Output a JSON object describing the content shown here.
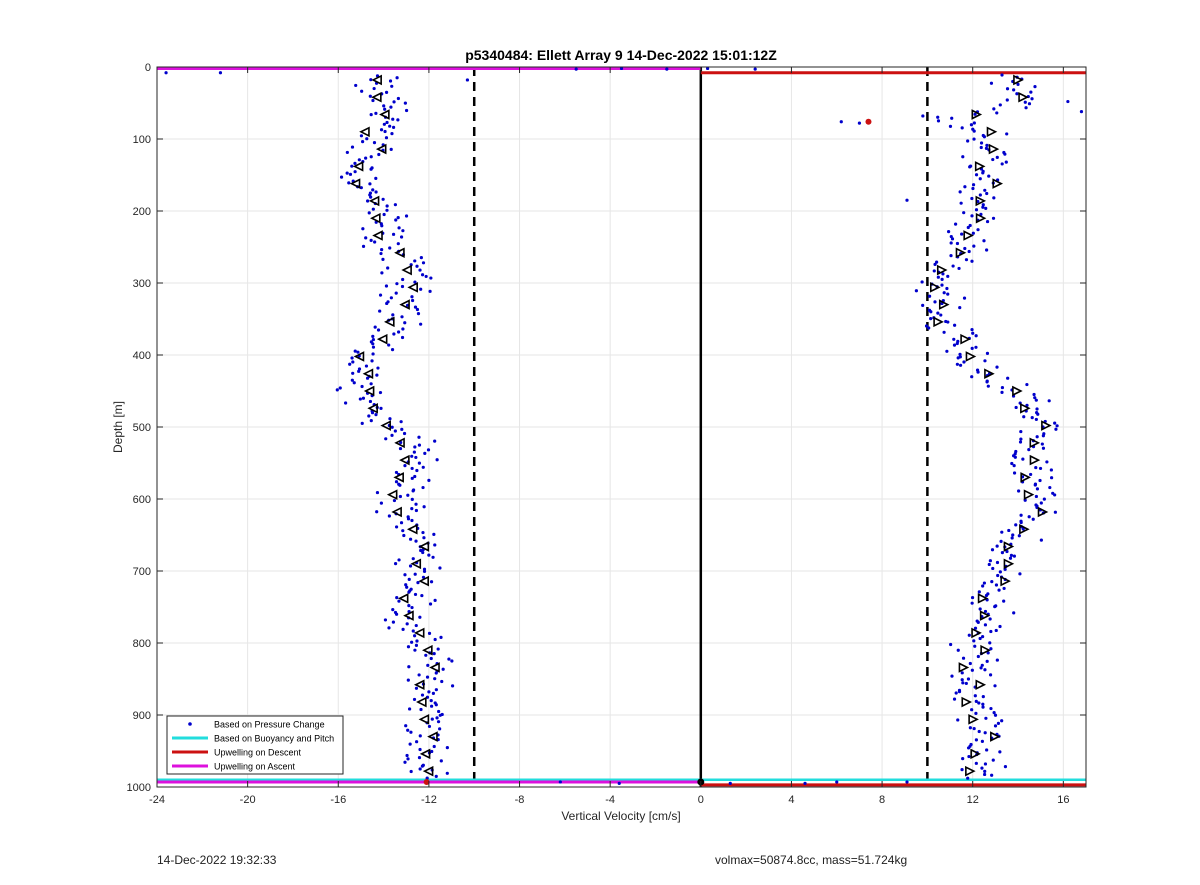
{
  "chart_data": {
    "type": "scatter",
    "title": "p5340484: Ellett Array 9 14-Dec-2022 15:01:12Z",
    "xlabel": "Vertical Velocity [cm/s]",
    "ylabel": "Depth [m]",
    "xlim": [
      -24,
      17
    ],
    "ylim": [
      0,
      1000
    ],
    "y_reversed": true,
    "x_ticks": [
      -24,
      -20,
      -16,
      -12,
      -8,
      -4,
      0,
      4,
      8,
      12,
      16
    ],
    "y_ticks": [
      0,
      100,
      200,
      300,
      400,
      500,
      600,
      700,
      800,
      900,
      1000
    ],
    "grid": true,
    "legend_position": "bottom-left",
    "legend": [
      {
        "label": "Based on Pressure Change",
        "color": "#0000cc",
        "style": "dot"
      },
      {
        "label": "Based on Buoyancy and Pitch",
        "color": "#22dddd",
        "style": "line"
      },
      {
        "label": "Upwelling on Descent",
        "color": "#cc1111",
        "style": "line"
      },
      {
        "label": "Upwelling on Ascent",
        "color": "#dd11dd",
        "style": "line"
      }
    ],
    "reference_lines": {
      "solid_x": 0,
      "dashed_x": [
        -10,
        10
      ],
      "descent_upwelling": {
        "x_from": 0,
        "x_to": 17,
        "depth": 8
      },
      "ascent_upwelling": {
        "x_from": -24,
        "x_to": 0,
        "depth": 2
      },
      "bottom_descent": {
        "depth": 997
      },
      "bottom_ascent": {
        "depth": 993
      },
      "bottom_buoyancy": {
        "depth": 990
      }
    },
    "ascent_profile": {
      "depth": [
        10,
        30,
        50,
        70,
        90,
        110,
        130,
        150,
        170,
        190,
        210,
        230,
        250,
        270,
        290,
        310,
        330,
        350,
        370,
        390,
        410,
        430,
        450,
        470,
        490,
        510,
        530,
        550,
        570,
        590,
        610,
        630,
        650,
        670,
        690,
        710,
        730,
        750,
        770,
        790,
        810,
        830,
        850,
        870,
        890,
        910,
        930,
        950,
        970,
        990
      ],
      "velocity": [
        -14.3,
        -14.6,
        -13.8,
        -13.5,
        -14.6,
        -14.4,
        -14.8,
        -14.9,
        -14.8,
        -14.3,
        -14.0,
        -14.1,
        -13.9,
        -13.2,
        -12.8,
        -13.0,
        -12.9,
        -13.2,
        -13.6,
        -14.7,
        -14.9,
        -15.1,
        -15.0,
        -14.7,
        -14.5,
        -13.0,
        -12.8,
        -12.6,
        -12.9,
        -13.2,
        -13.2,
        -12.8,
        -12.5,
        -12.4,
        -12.2,
        -12.3,
        -12.5,
        -12.9,
        -13.0,
        -12.7,
        -12.3,
        -11.8,
        -11.9,
        -12.0,
        -12.1,
        -12.1,
        -12.2,
        -12.3,
        -12.3,
        -12.1
      ]
    },
    "descent_profile": {
      "depth": [
        10,
        30,
        50,
        70,
        90,
        110,
        130,
        150,
        170,
        190,
        210,
        230,
        250,
        270,
        290,
        310,
        330,
        350,
        370,
        390,
        410,
        430,
        450,
        470,
        490,
        510,
        530,
        550,
        570,
        590,
        610,
        630,
        650,
        670,
        690,
        710,
        730,
        750,
        770,
        790,
        810,
        830,
        850,
        870,
        890,
        910,
        930,
        950,
        970,
        990
      ],
      "velocity": [
        13.8,
        13.8,
        14.2,
        11.5,
        12.4,
        12.8,
        12.2,
        12.7,
        12.6,
        12.0,
        12.0,
        11.8,
        11.6,
        11.2,
        10.6,
        10.4,
        10.6,
        10.8,
        11.1,
        11.5,
        12.0,
        12.8,
        13.9,
        14.6,
        14.9,
        15.0,
        14.6,
        14.4,
        14.5,
        14.8,
        14.8,
        14.4,
        14.0,
        13.6,
        13.3,
        13.0,
        12.9,
        12.8,
        12.6,
        12.3,
        12.2,
        12.0,
        11.9,
        11.9,
        12.1,
        12.4,
        12.6,
        12.5,
        12.3,
        12.0
      ]
    },
    "outliers": [
      {
        "x": -23.6,
        "y": 8
      },
      {
        "x": -21.2,
        "y": 8
      },
      {
        "x": -10.3,
        "y": 18
      },
      {
        "x": -5.5,
        "y": 3
      },
      {
        "x": -3.5,
        "y": 2
      },
      {
        "x": -1.5,
        "y": 3
      },
      {
        "x": 0.3,
        "y": 2
      },
      {
        "x": 2.4,
        "y": 3
      },
      {
        "x": 6.2,
        "y": 76
      },
      {
        "x": 7.0,
        "y": 78
      },
      {
        "x": 9.8,
        "y": 68
      },
      {
        "x": 9.1,
        "y": 185
      },
      {
        "x": 16.8,
        "y": 62
      },
      {
        "x": 16.2,
        "y": 48
      },
      {
        "x": -6.2,
        "y": 993
      },
      {
        "x": -3.6,
        "y": 995
      },
      {
        "x": 1.3,
        "y": 995
      },
      {
        "x": 4.6,
        "y": 995
      },
      {
        "x": 6.0,
        "y": 993
      },
      {
        "x": 9.1,
        "y": 993
      }
    ]
  },
  "footer": {
    "timestamp": "14-Dec-2022 19:32:33",
    "vehicle": "volmax=50874.8cc, mass=51.724kg"
  }
}
